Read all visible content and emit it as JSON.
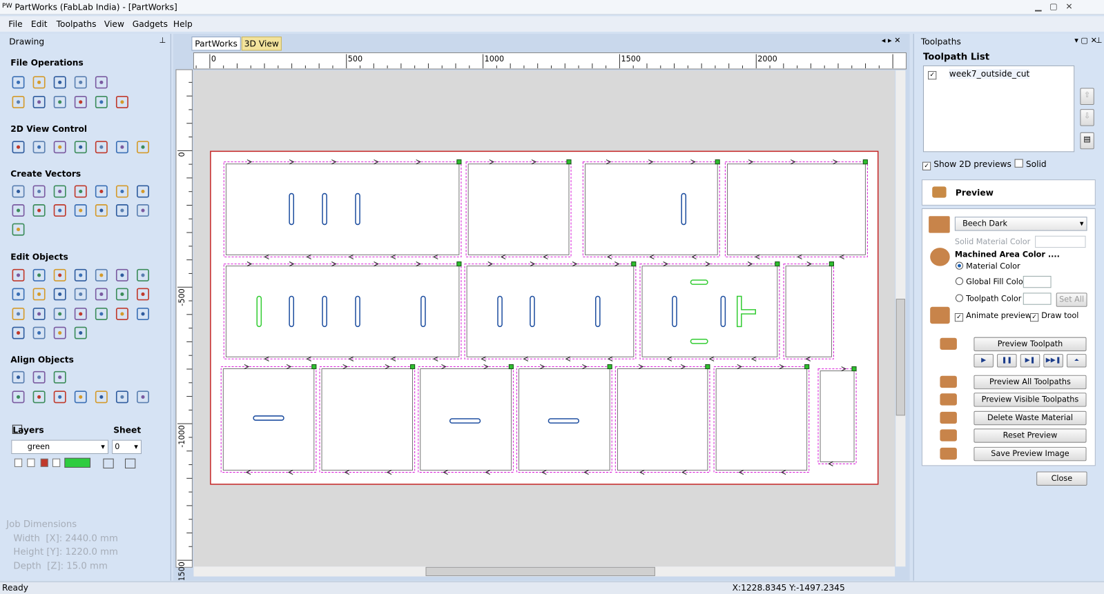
{
  "window": {
    "icon": "PW",
    "title": "PartWorks (FabLab India) - [PartWorks]"
  },
  "menu": [
    "File",
    "Edit",
    "Toolpaths",
    "View",
    "Gadgets",
    "Help"
  ],
  "left_panel": {
    "title": "Drawing",
    "sections": [
      "File Operations",
      "2D View Control",
      "Create Vectors",
      "Edit Objects",
      "Align Objects"
    ],
    "layers": {
      "label": "Layers",
      "sheet_label": "Sheet",
      "layer": "green",
      "sheet": "0"
    },
    "job": {
      "title": "Job Dimensions",
      "width": "Width  [X]: 2440.0 mm",
      "height": "Height [Y]: 1220.0 mm",
      "depth": "Depth  [Z]: 15.0 mm"
    }
  },
  "tabs": [
    "PartWorks",
    "3D View"
  ],
  "rulers": {
    "top": [
      "0",
      "500",
      "1000",
      "1500",
      "2000"
    ],
    "left": [
      "0",
      "-500",
      "-1000",
      "-1500"
    ]
  },
  "right_panel": {
    "title": "Toolpaths",
    "list_title": "Toolpath List",
    "toolpaths": [
      "week7_outside_cut"
    ],
    "show_2d": "Show 2D previews",
    "solid": "Solid",
    "preview": "Preview",
    "material": "Beech Dark",
    "solid_material_color": "Solid Material Color",
    "machined": "Machined Area Color ....",
    "options": [
      "Material Color",
      "Global Fill Color",
      "Toolpath Color"
    ],
    "set_all": "Set All",
    "animate": "Animate preview",
    "draw_tool": "Draw tool",
    "buttons": [
      "Preview Toolpath",
      "Preview All Toolpaths",
      "Preview Visible Toolpaths",
      "Delete Waste Material",
      "Reset Preview",
      "Save Preview Image"
    ],
    "close": "Close"
  },
  "status": {
    "text": "Ready",
    "coords": "X:1228.8345 Y:-1497.2345"
  }
}
